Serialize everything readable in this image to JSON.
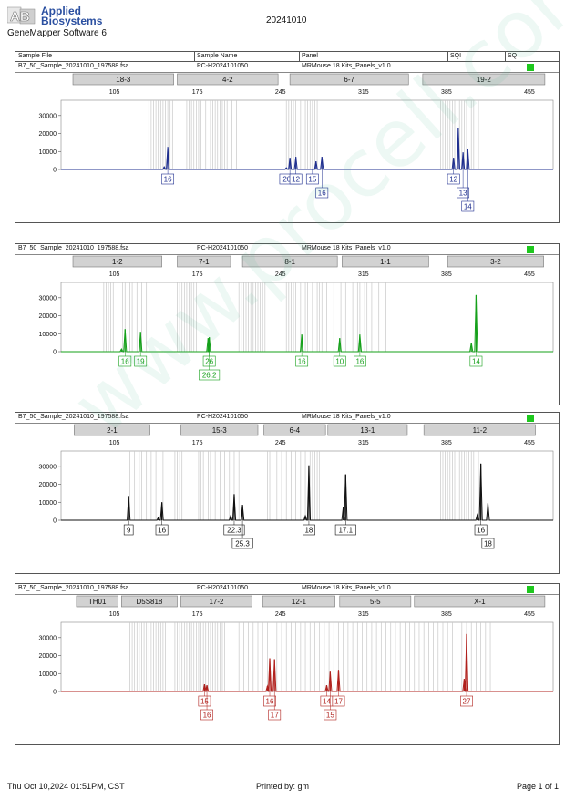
{
  "brand": {
    "name_line1": "Applied",
    "name_line2": "Biosystems",
    "logo_letters": "AB",
    "software": "GeneMapper Software 6"
  },
  "report_date": "20241010",
  "columns": {
    "sample_file": "Sample File",
    "sample_name": "Sample Name",
    "panel": "Panel",
    "sqi": "SQI",
    "sq": "SQ"
  },
  "colors": {
    "blue": "#1f2f8f",
    "green": "#15a01a",
    "black": "#111111",
    "red": "#b0201c",
    "status_green": "#1ec81e",
    "bin_fill": "#d2d2d2"
  },
  "chart_data": [
    {
      "type": "line",
      "sample_file": "B7_50_Sample_20241010_197588.fsa",
      "sample_name": "PC-H2024101050",
      "panel": "MRMouse 18 Kits_Panels_v1.0",
      "color": "blue",
      "x_ticks": [
        105,
        175,
        245,
        315,
        385,
        455
      ],
      "y_ticks": [
        0,
        10000,
        20000,
        30000
      ],
      "xlim": [
        60,
        475
      ],
      "ylim": [
        0,
        37000
      ],
      "markers": [
        {
          "name": "18-3",
          "start": 70,
          "end": 155
        },
        {
          "name": "4-2",
          "start": 158,
          "end": 243
        },
        {
          "name": "6-7",
          "start": 253,
          "end": 353
        },
        {
          "name": "19-2",
          "start": 365,
          "end": 468
        }
      ],
      "bins": [
        134,
        136,
        138,
        140,
        142,
        144,
        146,
        148,
        150,
        152,
        154,
        166,
        168,
        170,
        172,
        174,
        176,
        178,
        182,
        186,
        188,
        190,
        192,
        194,
        196,
        198,
        200,
        204,
        208,
        250,
        252,
        254,
        256,
        258,
        262,
        264,
        266,
        268,
        270,
        272,
        274,
        276,
        380,
        382,
        384,
        386,
        388,
        390,
        392,
        394,
        396,
        398,
        400,
        402,
        406,
        408,
        412
      ],
      "peaks": [
        {
          "x": 150,
          "height": 12500
        },
        {
          "x": 147,
          "height": 1500
        },
        {
          "x": 253,
          "height": 6500
        },
        {
          "x": 250,
          "height": 1000
        },
        {
          "x": 258,
          "height": 7000
        },
        {
          "x": 275,
          "height": 4500
        },
        {
          "x": 280,
          "height": 7000
        },
        {
          "x": 391,
          "height": 6500
        },
        {
          "x": 395,
          "height": 23000
        },
        {
          "x": 399,
          "height": 9500
        },
        {
          "x": 403,
          "height": 11500
        }
      ],
      "labels": [
        {
          "x": 150,
          "row": 0,
          "text": "16"
        },
        {
          "x": 253,
          "row": 0,
          "text": "20.3"
        },
        {
          "x": 258,
          "row": 0,
          "text": "12"
        },
        {
          "x": 272,
          "row": 0,
          "text": "15"
        },
        {
          "x": 280,
          "row": 1,
          "text": "16"
        },
        {
          "x": 391,
          "row": 0,
          "text": "12"
        },
        {
          "x": 399,
          "row": 1,
          "text": "13"
        },
        {
          "x": 403,
          "row": 2,
          "text": "14"
        }
      ]
    },
    {
      "type": "line",
      "sample_file": "B7_50_Sample_20241010_197588.fsa",
      "sample_name": "PC-H2024101050",
      "panel": "MRMouse 18 Kits_Panels_v1.0",
      "color": "green",
      "x_ticks": [
        105,
        175,
        245,
        315,
        385,
        455
      ],
      "y_ticks": [
        0,
        10000,
        20000,
        30000
      ],
      "xlim": [
        60,
        475
      ],
      "ylim": [
        0,
        37000
      ],
      "markers": [
        {
          "name": "1-2",
          "start": 70,
          "end": 145
        },
        {
          "name": "7-1",
          "start": 158,
          "end": 203
        },
        {
          "name": "8-1",
          "start": 213,
          "end": 293
        },
        {
          "name": "1-1",
          "start": 297,
          "end": 370
        },
        {
          "name": "3-2",
          "start": 386,
          "end": 467
        }
      ],
      "bins": [
        96,
        98,
        100,
        102,
        104,
        108,
        112,
        114,
        118,
        120,
        124,
        128,
        132,
        158,
        160,
        162,
        164,
        166,
        168,
        170,
        172,
        174,
        210,
        212,
        214,
        216,
        218,
        220,
        222,
        224,
        226,
        228,
        230,
        232,
        250,
        252,
        254,
        256,
        258,
        262,
        264,
        266,
        268,
        272,
        276,
        278,
        280,
        284,
        290,
        296,
        300,
        306,
        310,
        312,
        316,
        318,
        322,
        328,
        334
      ],
      "peaks": [
        {
          "x": 114,
          "height": 12500
        },
        {
          "x": 111,
          "height": 1500
        },
        {
          "x": 127,
          "height": 11000
        },
        {
          "x": 184,
          "height": 7500
        },
        {
          "x": 185,
          "height": 8000
        },
        {
          "x": 263,
          "height": 9500
        },
        {
          "x": 295,
          "height": 7500
        },
        {
          "x": 312,
          "height": 9500
        },
        {
          "x": 406,
          "height": 5000
        },
        {
          "x": 410,
          "height": 31500
        }
      ],
      "labels": [
        {
          "x": 114,
          "row": 0,
          "text": "16"
        },
        {
          "x": 127,
          "row": 0,
          "text": "19"
        },
        {
          "x": 185,
          "row": 0,
          "text": "26"
        },
        {
          "x": 185,
          "row": 1,
          "text": "26.2"
        },
        {
          "x": 263,
          "row": 0,
          "text": "16"
        },
        {
          "x": 295,
          "row": 0,
          "text": "10"
        },
        {
          "x": 312,
          "row": 0,
          "text": "16"
        },
        {
          "x": 410,
          "row": 0,
          "text": "14"
        }
      ]
    },
    {
      "type": "line",
      "sample_file": "B7_50_Sample_20241010_197588.fsa",
      "sample_name": "PC-H2024101050",
      "panel": "MRMouse 18 Kits_Panels_v1.0",
      "color": "black",
      "x_ticks": [
        105,
        175,
        245,
        315,
        385,
        455
      ],
      "y_ticks": [
        0,
        10000,
        20000,
        30000
      ],
      "xlim": [
        60,
        475
      ],
      "ylim": [
        0,
        37000
      ],
      "markers": [
        {
          "name": "2-1",
          "start": 71,
          "end": 135
        },
        {
          "name": "15-3",
          "start": 161,
          "end": 226
        },
        {
          "name": "6-4",
          "start": 231,
          "end": 283
        },
        {
          "name": "13-1",
          "start": 285,
          "end": 352
        },
        {
          "name": "11-2",
          "start": 366,
          "end": 460
        }
      ],
      "bins": [
        118,
        122,
        126,
        128,
        132,
        136,
        140,
        146,
        156,
        158,
        160,
        162,
        176,
        178,
        180,
        184,
        186,
        190,
        194,
        198,
        202,
        206,
        210,
        234,
        236,
        242,
        246,
        250,
        254,
        258,
        262,
        266,
        270,
        272,
        274,
        276,
        278,
        380,
        382,
        384,
        386,
        388,
        390,
        392,
        394,
        396,
        398,
        400,
        402,
        404,
        406,
        408,
        412
      ],
      "peaks": [
        {
          "x": 117,
          "height": 13500
        },
        {
          "x": 145,
          "height": 10000
        },
        {
          "x": 142,
          "height": 1500
        },
        {
          "x": 206,
          "height": 14500
        },
        {
          "x": 203,
          "height": 2500
        },
        {
          "x": 213,
          "height": 8500
        },
        {
          "x": 269,
          "height": 30500
        },
        {
          "x": 266,
          "height": 2500
        },
        {
          "x": 300,
          "height": 25500
        },
        {
          "x": 298,
          "height": 7500
        },
        {
          "x": 414,
          "height": 31500
        },
        {
          "x": 411,
          "height": 3000
        },
        {
          "x": 420,
          "height": 9500
        }
      ],
      "labels": [
        {
          "x": 117,
          "row": 0,
          "text": "9"
        },
        {
          "x": 145,
          "row": 0,
          "text": "16"
        },
        {
          "x": 206,
          "row": 0,
          "text": "22.3"
        },
        {
          "x": 213,
          "row": 1,
          "text": "25.3"
        },
        {
          "x": 269,
          "row": 0,
          "text": "18"
        },
        {
          "x": 300,
          "row": 0,
          "text": "17.1"
        },
        {
          "x": 414,
          "row": 0,
          "text": "16"
        },
        {
          "x": 420,
          "row": 1,
          "text": "18"
        }
      ]
    },
    {
      "type": "line",
      "sample_file": "B7_50_Sample_20241010_197588.fsa",
      "sample_name": "PC-H2024101050",
      "panel": "MRMouse 18 Kits_Panels_v1.0",
      "color": "red",
      "x_ticks": [
        105,
        175,
        245,
        315,
        385,
        455
      ],
      "y_ticks": [
        0,
        10000,
        20000,
        30000
      ],
      "xlim": [
        60,
        475
      ],
      "ylim": [
        0,
        37000
      ],
      "markers": [
        {
          "name": "TH01",
          "start": 73,
          "end": 108
        },
        {
          "name": "D5S818",
          "start": 111,
          "end": 158
        },
        {
          "name": "17-2",
          "start": 161,
          "end": 221
        },
        {
          "name": "12-1",
          "start": 230,
          "end": 291
        },
        {
          "name": "5-5",
          "start": 295,
          "end": 355
        },
        {
          "name": "X-1",
          "start": 358,
          "end": 468
        }
      ],
      "bins": [
        118,
        120,
        122,
        124,
        126,
        128,
        130,
        132,
        134,
        136,
        138,
        140,
        142,
        144,
        146,
        148,
        156,
        158,
        160,
        162,
        164,
        166,
        168,
        170,
        172,
        174,
        176,
        178,
        180,
        182,
        184,
        186,
        188,
        190,
        192,
        194,
        196,
        198,
        210,
        214,
        218,
        222,
        226,
        230,
        234,
        238,
        242,
        246,
        250,
        254,
        258,
        262,
        266,
        270,
        274,
        278,
        282,
        286,
        290,
        294,
        298,
        302,
        306,
        310,
        314,
        318,
        322,
        326,
        330,
        334,
        338,
        342,
        346,
        350,
        354,
        358,
        362,
        366,
        370,
        374,
        378,
        382,
        386,
        390,
        394,
        398,
        402,
        406,
        410,
        414,
        418,
        420,
        422
      ],
      "peaks": [
        {
          "x": 181,
          "height": 4000
        },
        {
          "x": 183,
          "height": 3500
        },
        {
          "x": 236,
          "height": 18500
        },
        {
          "x": 240,
          "height": 18000
        },
        {
          "x": 234,
          "height": 3000
        },
        {
          "x": 284,
          "height": 3500
        },
        {
          "x": 287,
          "height": 11000
        },
        {
          "x": 294,
          "height": 12000
        },
        {
          "x": 400,
          "height": 7000
        },
        {
          "x": 402,
          "height": 32000
        }
      ],
      "labels": [
        {
          "x": 181,
          "row": 0,
          "text": "15"
        },
        {
          "x": 183,
          "row": 1,
          "text": "16"
        },
        {
          "x": 236,
          "row": 0,
          "text": "16"
        },
        {
          "x": 240,
          "row": 1,
          "text": "17"
        },
        {
          "x": 284,
          "row": 0,
          "text": "14"
        },
        {
          "x": 294,
          "row": 0,
          "text": "17"
        },
        {
          "x": 287,
          "row": 1,
          "text": "15"
        },
        {
          "x": 402,
          "row": 0,
          "text": "27"
        }
      ]
    }
  ],
  "footer": {
    "timestamp": "Thu Oct 10,2024 01:51PM, CST",
    "printed_by": "Printed by: gm",
    "page": "Page 1 of 1"
  },
  "watermark": "www.procell.com.cn"
}
